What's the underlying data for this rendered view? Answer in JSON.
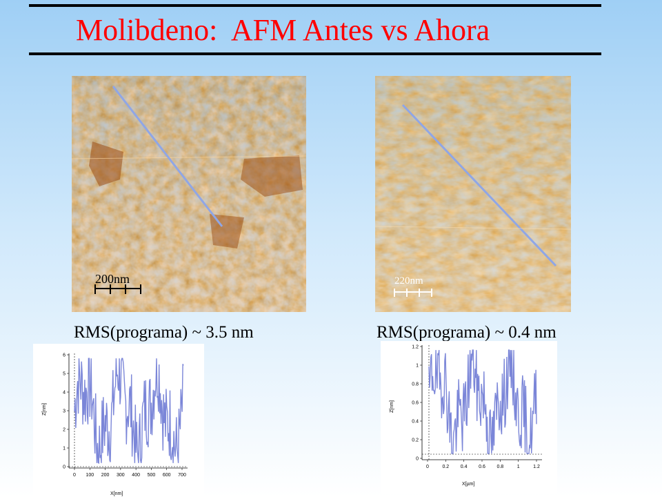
{
  "slide": {
    "title": "Molibdeno:  AFM Antes vs Ahora",
    "title_color": "#ff0000"
  },
  "left": {
    "image_name": "afm-image-antes",
    "scale_bar": "200nm",
    "rms_text": "RMS(programa) ~ 3.5 nm"
  },
  "right": {
    "image_name": "afm-image-ahora",
    "scale_bar": "220nm",
    "rms_text": "RMS(programa) ~ 0.4 nm"
  },
  "profiles": [
    {
      "id": "profile-antes",
      "xlabel": "X[nm]",
      "ylabel": "Z[nm]",
      "x_ticks": [
        "0",
        "100",
        "200",
        "300",
        "400",
        "500",
        "600",
        "700"
      ],
      "y_ticks": [
        "0",
        "1",
        "2",
        "3",
        "4",
        "5",
        "6"
      ],
      "line_color": "#7f7fe0"
    },
    {
      "id": "profile-ahora",
      "xlabel": "X[µm]",
      "ylabel": "Z[nm]",
      "x_ticks": [
        "0",
        "0.2",
        "0.4",
        "0.6",
        "0.8",
        "1",
        "1.2"
      ],
      "y_ticks": [
        "0",
        "0.2",
        "0.4",
        "0.6",
        "0.8",
        "1",
        "1.2"
      ],
      "line_color": "#7f7fe0"
    }
  ],
  "colors": {
    "afm_dark": "#8a3c06",
    "afm_mid": "#c8661a",
    "afm_light": "#ffe3b0",
    "profile_line": "#7b86d8"
  }
}
